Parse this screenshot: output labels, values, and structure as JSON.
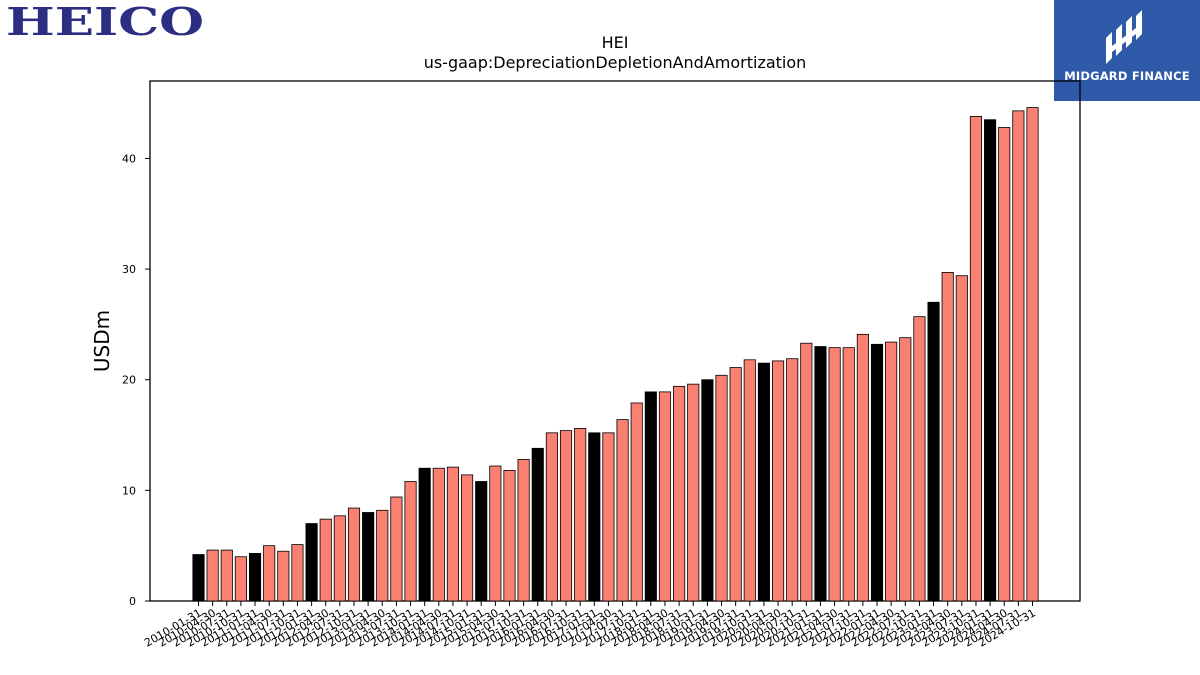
{
  "header": {
    "company_logo_text": "HEICO",
    "company_logo_color": "#2b2e83",
    "brand_name": "MIDGARD FINANCE",
    "brand_color": "#2f5aa9"
  },
  "chart_data": {
    "type": "bar",
    "title": "HEI",
    "subtitle": "us-gaap:DepreciationDepletionAndAmortization",
    "xlabel": "",
    "ylabel": "USDm",
    "ylim": [
      0,
      47
    ],
    "yticks": [
      0,
      10,
      20,
      30,
      40
    ],
    "grid": false,
    "colors": {
      "annual": "#000000",
      "quarterly": "#fa8072"
    },
    "categories": [
      "2010-01-31",
      "2010-04-30",
      "2010-07-31",
      "2010-10-31",
      "2011-01-31",
      "2011-04-30",
      "2011-07-31",
      "2011-10-31",
      "2012-01-31",
      "2012-04-30",
      "2012-07-31",
      "2012-10-31",
      "2013-01-31",
      "2013-04-30",
      "2013-07-31",
      "2013-10-31",
      "2014-01-31",
      "2014-04-30",
      "2014-07-31",
      "2014-10-31",
      "2015-01-31",
      "2015-04-30",
      "2015-07-31",
      "2015-10-31",
      "2016-01-31",
      "2016-04-30",
      "2016-07-31",
      "2016-10-31",
      "2017-01-31",
      "2017-04-30",
      "2017-07-31",
      "2017-10-31",
      "2018-01-31",
      "2018-04-30",
      "2018-07-31",
      "2018-10-31",
      "2019-01-31",
      "2019-04-30",
      "2019-07-31",
      "2019-10-31",
      "2020-01-31",
      "2020-04-30",
      "2020-07-31",
      "2020-10-31",
      "2021-01-31",
      "2021-04-30",
      "2021-07-31",
      "2021-10-31",
      "2022-01-31",
      "2022-04-30",
      "2022-07-31",
      "2022-10-31",
      "2023-01-31",
      "2023-04-30",
      "2023-07-31",
      "2023-10-31",
      "2024-01-31",
      "2024-04-30",
      "2024-07-31",
      "2024-10-31"
    ],
    "values": [
      4.2,
      4.6,
      4.6,
      4.0,
      4.3,
      5.0,
      4.5,
      5.1,
      7.0,
      7.4,
      7.7,
      8.4,
      8.0,
      8.2,
      9.4,
      10.8,
      12.0,
      12.0,
      12.1,
      11.4,
      10.8,
      12.2,
      11.8,
      12.8,
      13.8,
      15.2,
      15.4,
      15.6,
      15.2,
      15.2,
      16.4,
      17.9,
      18.9,
      18.9,
      19.4,
      19.6,
      20.0,
      20.4,
      21.1,
      21.8,
      21.5,
      21.7,
      21.9,
      23.3,
      23.0,
      22.9,
      22.9,
      24.1,
      23.2,
      23.4,
      23.8,
      25.7,
      27.0,
      29.7,
      29.4,
      43.8,
      43.5,
      42.8,
      44.3,
      44.6
    ],
    "period_type": [
      "annual",
      "quarterly",
      "quarterly",
      "quarterly",
      "annual",
      "quarterly",
      "quarterly",
      "quarterly",
      "annual",
      "quarterly",
      "quarterly",
      "quarterly",
      "annual",
      "quarterly",
      "quarterly",
      "quarterly",
      "annual",
      "quarterly",
      "quarterly",
      "quarterly",
      "annual",
      "quarterly",
      "quarterly",
      "quarterly",
      "annual",
      "quarterly",
      "quarterly",
      "quarterly",
      "annual",
      "quarterly",
      "quarterly",
      "quarterly",
      "annual",
      "quarterly",
      "quarterly",
      "quarterly",
      "annual",
      "quarterly",
      "quarterly",
      "quarterly",
      "annual",
      "quarterly",
      "quarterly",
      "quarterly",
      "annual",
      "quarterly",
      "quarterly",
      "quarterly",
      "annual",
      "quarterly",
      "quarterly",
      "quarterly",
      "annual",
      "quarterly",
      "quarterly",
      "quarterly",
      "annual",
      "quarterly",
      "quarterly",
      "quarterly"
    ]
  }
}
